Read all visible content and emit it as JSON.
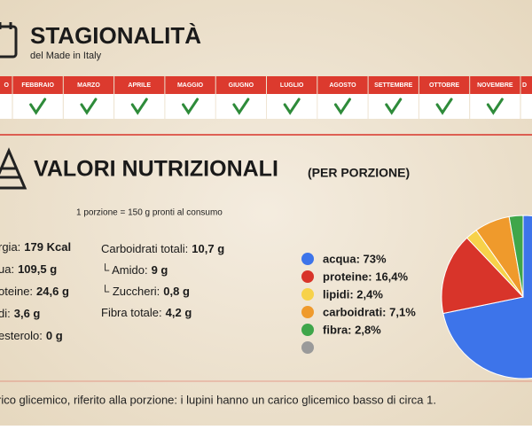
{
  "header": {
    "title": "STAGIONALITÀ",
    "subtitle": "del Made in Italy"
  },
  "months": [
    {
      "label": "O",
      "in_season": false
    },
    {
      "label": "FEBBRAIO",
      "in_season": true
    },
    {
      "label": "MARZO",
      "in_season": true
    },
    {
      "label": "APRILE",
      "in_season": true
    },
    {
      "label": "MAGGIO",
      "in_season": true
    },
    {
      "label": "GIUGNO",
      "in_season": true
    },
    {
      "label": "LUGLIO",
      "in_season": true
    },
    {
      "label": "AGOSTO",
      "in_season": true
    },
    {
      "label": "SETTEMBRE",
      "in_season": true
    },
    {
      "label": "OTTOBRE",
      "in_season": true
    },
    {
      "label": "NOVEMBRE",
      "in_season": true
    },
    {
      "label": "D",
      "in_season": false
    }
  ],
  "nutrition": {
    "title": "VALORI NUTRIZIONALI",
    "qualifier": "(PER PORZIONE)",
    "portion": "1 porzione = 150 g pronti al consumo",
    "left": [
      {
        "name": "rgia:",
        "value": "179 Kcal"
      },
      {
        "name": "ua:",
        "value": "109,5 g"
      },
      {
        "name": "oteine:",
        "value": "24,6 g"
      },
      {
        "name": "di:",
        "value": "3,6 g"
      },
      {
        "name": "esterolo:",
        "value": "0 g"
      }
    ],
    "right": [
      {
        "name": "Carboidrati totali:",
        "value": "10,7 g"
      },
      {
        "name": "└ Amido:",
        "value": "9 g"
      },
      {
        "name": "└ Zuccheri:",
        "value": "0,8 g"
      },
      {
        "name": "Fibra totale:",
        "value": "4,2 g"
      }
    ]
  },
  "chart_data": {
    "type": "pie",
    "categories": [
      "acqua",
      "proteine",
      "lipidi",
      "carboidrati",
      "fibra"
    ],
    "values": [
      73,
      16.4,
      2.4,
      7.1,
      2.8
    ],
    "value_labels": [
      "73%",
      "16,4%",
      "2,4%",
      "7,1%",
      "2,8%"
    ],
    "colors": [
      "#3d74ea",
      "#d8342a",
      "#f7d24a",
      "#ef9a2c",
      "#3fa64a"
    ],
    "legend_labels": [
      "acqua: 73%",
      "proteine: 16,4%",
      "lipidi: 2,4%",
      "carboidrati: 7,1%",
      "fibra: 2,8%"
    ]
  },
  "footer": "rico glicemico, riferito alla porzione: i lupini hanno un carico glicemico basso di circa 1."
}
